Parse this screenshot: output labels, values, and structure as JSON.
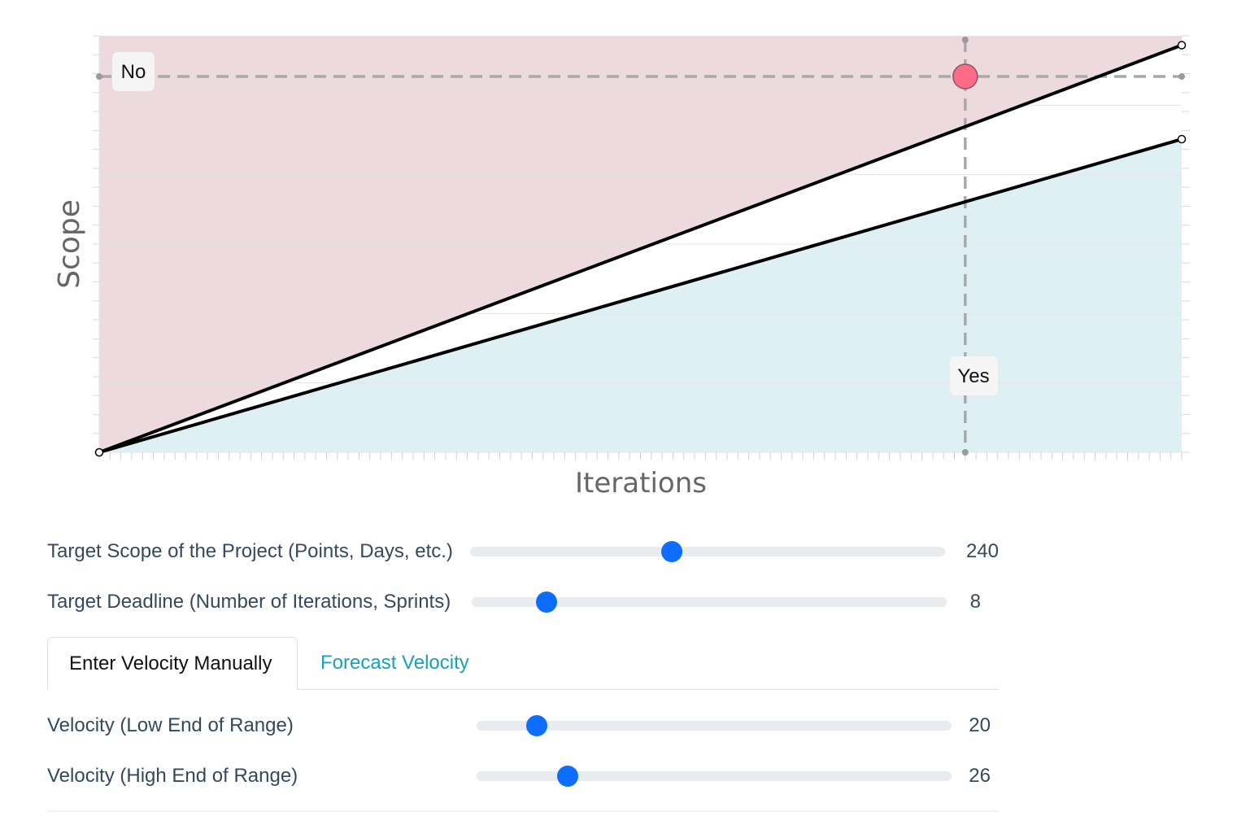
{
  "chart": {
    "y_axis_title": "Scope",
    "x_axis_title": "Iterations",
    "no_label": "No",
    "yes_label": "Yes",
    "colors": {
      "no_region": "#ecdade",
      "yes_region": "#dff0f4",
      "between_region": "#ffffff",
      "line": "#000000",
      "guide": "#a9a9a9",
      "target_point": "#ff6b86"
    }
  },
  "chart_data": {
    "type": "line",
    "xlabel": "Iterations",
    "ylabel": "Scope",
    "xlim": [
      0,
      10
    ],
    "ylim": [
      0,
      266
    ],
    "series": [
      {
        "x": [
          0,
          10
        ],
        "y": [
          0,
          260
        ]
      },
      {
        "x": [
          0,
          10
        ],
        "y": [
          0,
          200
        ]
      }
    ],
    "target": {
      "x": 8,
      "y": 240
    }
  },
  "controls": {
    "scope": {
      "label": "Target Scope of the Project (Points, Days, etc.)",
      "value": "240",
      "position": 0.425
    },
    "deadline": {
      "label": "Target Deadline (Number of Iterations, Sprints)",
      "value": "8",
      "position": 0.158
    },
    "tabs": {
      "manual": "Enter Velocity Manually",
      "forecast": "Forecast Velocity"
    },
    "velocity_low": {
      "label": "Velocity (Low End of Range)",
      "value": "20",
      "position": 0.127
    },
    "velocity_high": {
      "label": "Velocity (High End of Range)",
      "value": "26",
      "position": 0.191
    }
  }
}
